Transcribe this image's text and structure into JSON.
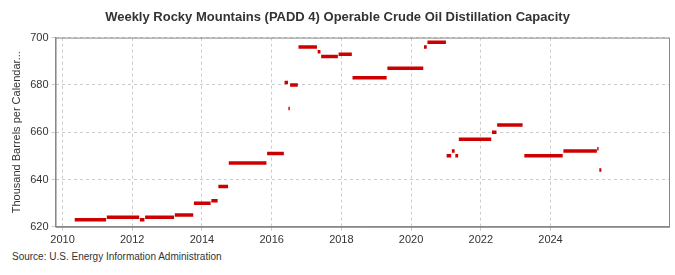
{
  "chart_data": {
    "type": "line",
    "title": "Weekly Rocky Mountains (PADD 4) Operable Crude Oil Distillation Capacity",
    "y_label": "Thousand Barrels per Calendar...",
    "source": "Source: U.S. Energy Information Administration",
    "color": "#cc0000",
    "grid": true,
    "xlim": [
      2009.8,
      2027.4
    ],
    "xticks": [
      2010,
      2012,
      2014,
      2016,
      2018,
      2020,
      2022,
      2024
    ],
    "ylim": [
      620,
      700
    ],
    "yticks": [
      620,
      640,
      660,
      680,
      700
    ],
    "x": [
      2010.35,
      2011.25,
      2011.25,
      2011.27,
      2012.2,
      2012.2,
      2012.22,
      2012.35,
      2012.35,
      2012.37,
      2013.2,
      2013.2,
      2013.22,
      2013.75,
      2013.75,
      2013.77,
      2014.25,
      2014.25,
      2014.27,
      2014.45,
      2014.45,
      2014.47,
      2014.75,
      2014.75,
      2014.77,
      2015.85,
      2015.85,
      2015.87,
      2016.35,
      2016.35,
      2016.37,
      2016.47,
      2016.47,
      2016.48,
      2016.52,
      2016.52,
      2016.53,
      2016.75,
      2016.75,
      2016.77,
      2017.3,
      2017.3,
      2017.32,
      2017.4,
      2017.4,
      2017.42,
      2017.9,
      2017.9,
      2017.92,
      2018.3,
      2018.3,
      2018.32,
      2019.3,
      2019.3,
      2019.32,
      2020.35,
      2020.35,
      2020.37,
      2020.45,
      2020.45,
      2020.47,
      2021.0,
      2021.0,
      2021.02,
      2021.15,
      2021.15,
      2021.17,
      2021.25,
      2021.25,
      2021.27,
      2021.35,
      2021.35,
      2021.37,
      2022.3,
      2022.3,
      2022.32,
      2022.45,
      2022.45,
      2022.47,
      2023.2,
      2023.2,
      2023.25,
      2024.35,
      2024.35,
      2024.37,
      2025.33,
      2025.33,
      2025.34,
      2025.38,
      2025.38,
      2025.4,
      2025.46
    ],
    "values": [
      623,
      623,
      null,
      624,
      624,
      null,
      623,
      623,
      null,
      624,
      624,
      null,
      625,
      625,
      null,
      630,
      630,
      null,
      631,
      631,
      null,
      637,
      637,
      null,
      647,
      647,
      null,
      651,
      651,
      null,
      681,
      681,
      null,
      670,
      670,
      null,
      680,
      680,
      null,
      696,
      696,
      null,
      694,
      694,
      null,
      692,
      692,
      null,
      693,
      693,
      null,
      683,
      683,
      null,
      687,
      687,
      null,
      696,
      696,
      null,
      698,
      698,
      null,
      650,
      650,
      null,
      652,
      652,
      null,
      650,
      650,
      null,
      657,
      657,
      null,
      660,
      660,
      null,
      663,
      663,
      null,
      650,
      650,
      null,
      652,
      652,
      null,
      653,
      653,
      null,
      644,
      644
    ]
  }
}
